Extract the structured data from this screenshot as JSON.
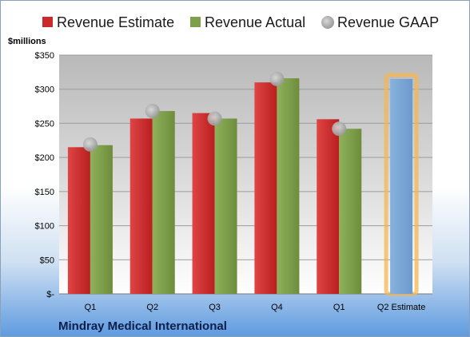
{
  "chart_data": {
    "type": "bar",
    "unit_label": "$millions",
    "categories": [
      "Q1",
      "Q2",
      "Q3",
      "Q4",
      "Q1",
      "Q2 Estimate"
    ],
    "series": [
      {
        "name": "Revenue Estimate",
        "color": "#cc2a2a",
        "values": [
          215,
          257,
          265,
          310,
          256,
          null
        ]
      },
      {
        "name": "Revenue Actual",
        "color": "#7fa04a",
        "values": [
          218,
          268,
          257,
          316,
          242,
          null
        ]
      },
      {
        "name": "Revenue GAAP",
        "type": "scatter",
        "color": "#a8a8a8",
        "values": [
          219,
          268,
          257,
          315,
          242,
          null
        ]
      }
    ],
    "highlight": {
      "category_index": 5,
      "value": 315,
      "color": "#7aa7d6",
      "glow": "#f5b552"
    },
    "ylim": [
      0,
      350
    ],
    "yticks": [
      0,
      50,
      100,
      150,
      200,
      250,
      300,
      350
    ],
    "ytick_labels": [
      "$-",
      "$50",
      "$100",
      "$150",
      "$200",
      "$250",
      "$300",
      "$350"
    ],
    "legend_position": "top",
    "grid": true,
    "footer": "Mindray Medical International"
  }
}
